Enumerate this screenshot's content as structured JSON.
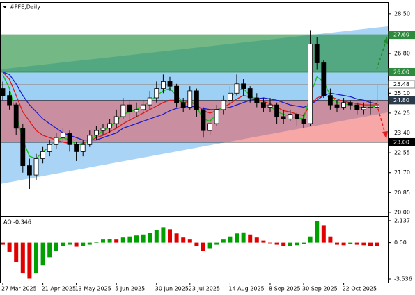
{
  "chart_data": [
    {
      "type": "candlestick",
      "title": "#PFE,Daily",
      "categories": [
        "27 Mar 2025",
        null,
        null,
        null,
        null,
        null,
        "21 Apr 2025",
        null,
        null,
        null,
        null,
        "13 May 2025",
        null,
        null,
        null,
        null,
        null,
        "5 Jun 2025",
        null,
        null,
        null,
        null,
        null,
        "30 Jun 2025",
        null,
        null,
        null,
        null,
        "23 Jul 2025",
        null,
        null,
        null,
        null,
        null,
        "14 Aug 2025",
        null,
        null,
        null,
        null,
        null,
        "8 Sep 2025",
        null,
        null,
        null,
        null,
        "30 Sep 2025",
        null,
        null,
        null,
        null,
        null,
        "22 Oct 2025",
        null,
        null,
        null,
        null,
        null
      ],
      "open": [
        25.3,
        25.0,
        24.6,
        23.6,
        22.0,
        21.6,
        22.3,
        22.6,
        22.9,
        23.2,
        23.4,
        22.9,
        22.6,
        22.9,
        23.3,
        23.5,
        23.6,
        23.8,
        24.1,
        24.6,
        24.3,
        24.4,
        24.6,
        24.9,
        25.3,
        25.6,
        25.4,
        24.7,
        24.5,
        25.2,
        24.4,
        23.5,
        23.8,
        24.4,
        24.8,
        25.1,
        25.5,
        25.3,
        24.9,
        24.7,
        24.5,
        24.6,
        24.1,
        24.0,
        24.2,
        24.0,
        23.8,
        27.2,
        26.4,
        25.0,
        24.6,
        24.5,
        24.7,
        24.6,
        24.4,
        24.5,
        24.5
      ],
      "high": [
        25.6,
        25.2,
        24.7,
        23.8,
        22.3,
        22.5,
        22.8,
        23.1,
        23.4,
        23.6,
        23.5,
        23.0,
        23.1,
        23.5,
        23.7,
        23.8,
        24.0,
        24.4,
        24.9,
        24.8,
        24.7,
        24.8,
        25.2,
        25.6,
        25.9,
        25.8,
        25.5,
        24.9,
        25.4,
        25.3,
        24.5,
        24.0,
        24.6,
        25.0,
        25.4,
        25.9,
        25.7,
        25.4,
        25.1,
        24.9,
        24.9,
        24.7,
        24.4,
        24.4,
        24.3,
        24.2,
        27.8,
        27.5,
        26.5,
        25.3,
        24.8,
        24.9,
        24.8,
        24.7,
        24.7,
        24.8,
        25.45
      ],
      "low": [
        24.8,
        24.4,
        23.3,
        21.7,
        21.0,
        21.4,
        22.1,
        22.4,
        22.7,
        23.0,
        22.6,
        22.2,
        22.4,
        22.8,
        23.1,
        23.3,
        23.4,
        23.6,
        24.0,
        24.0,
        24.1,
        24.2,
        24.4,
        24.7,
        25.1,
        25.2,
        24.5,
        24.3,
        24.4,
        24.1,
        23.2,
        23.3,
        23.7,
        24.2,
        24.6,
        25.0,
        25.0,
        24.7,
        24.5,
        24.3,
        24.3,
        23.8,
        23.8,
        23.9,
        23.7,
        23.6,
        23.7,
        26.1,
        24.9,
        24.4,
        24.3,
        24.4,
        24.4,
        24.2,
        24.2,
        24.2,
        24.4
      ],
      "close": [
        25.0,
        24.6,
        23.6,
        22.0,
        21.6,
        22.3,
        22.6,
        22.9,
        23.2,
        23.4,
        22.9,
        22.6,
        22.9,
        23.3,
        23.5,
        23.6,
        23.8,
        24.1,
        24.6,
        24.3,
        24.4,
        24.6,
        24.9,
        25.3,
        25.6,
        25.4,
        24.7,
        24.5,
        25.2,
        24.4,
        23.5,
        23.8,
        24.4,
        24.8,
        25.1,
        25.5,
        25.3,
        24.9,
        24.7,
        24.5,
        24.6,
        24.1,
        24.0,
        24.2,
        24.0,
        23.8,
        27.2,
        26.4,
        25.0,
        24.6,
        24.5,
        24.7,
        24.6,
        24.4,
        24.5,
        24.5,
        24.6
      ],
      "up_color": "#ffffff",
      "down_color": "#000000",
      "outline_color": "#000000",
      "ma_lines": [
        {
          "color": "#1c1ccc",
          "values": [
            26.0,
            25.9,
            25.5,
            25.0,
            24.6,
            24.3,
            24.0,
            23.8,
            23.6,
            23.4,
            23.3,
            23.2,
            23.1,
            23.1,
            23.1,
            23.2,
            23.3,
            23.4,
            23.6,
            23.7,
            23.8,
            23.9,
            24.0,
            24.1,
            24.2,
            24.35,
            24.45,
            24.5,
            24.55,
            24.5,
            24.45,
            24.4,
            24.4,
            24.45,
            24.5,
            24.6,
            24.7,
            24.8,
            24.85,
            24.9,
            24.85,
            24.8,
            24.7,
            24.6,
            24.55,
            24.5,
            24.6,
            24.8,
            25.0,
            25.1,
            25.05,
            25.0,
            24.95,
            24.85,
            24.8,
            24.7,
            24.65
          ]
        },
        {
          "color": "#dd1a1a",
          "values": [
            26.0,
            25.7,
            25.0,
            24.3,
            23.9,
            23.5,
            23.3,
            23.2,
            23.1,
            23.0,
            22.95,
            22.9,
            22.95,
            23.05,
            23.2,
            23.3,
            23.45,
            23.6,
            23.8,
            23.95,
            24.1,
            24.25,
            24.4,
            24.55,
            24.7,
            24.8,
            24.8,
            24.7,
            24.75,
            24.6,
            24.35,
            24.25,
            24.35,
            24.5,
            24.65,
            24.85,
            25.0,
            24.95,
            24.85,
            24.75,
            24.65,
            24.5,
            24.35,
            24.3,
            24.2,
            24.15,
            24.6,
            24.9,
            25.0,
            24.95,
            24.85,
            24.75,
            24.7,
            24.65,
            24.6,
            24.6,
            24.6
          ]
        },
        {
          "color": "#10c010",
          "values": [
            25.9,
            25.3,
            24.2,
            23.1,
            22.4,
            22.3,
            22.6,
            22.8,
            23.1,
            23.2,
            23.1,
            22.9,
            22.9,
            23.1,
            23.3,
            23.5,
            23.65,
            23.9,
            24.2,
            24.3,
            24.4,
            24.55,
            24.75,
            25.0,
            25.2,
            25.3,
            25.0,
            24.7,
            24.8,
            24.5,
            24.0,
            23.9,
            24.2,
            24.6,
            24.9,
            25.2,
            25.3,
            25.0,
            24.8,
            24.6,
            24.55,
            24.3,
            24.2,
            24.1,
            24.05,
            24.0,
            25.0,
            25.8,
            25.6,
            25.0,
            24.7,
            24.65,
            24.6,
            24.5,
            24.5,
            24.5,
            24.55
          ]
        }
      ],
      "ylim": [
        19.85,
        29.0
      ],
      "yticks": [
        {
          "value": 28.5,
          "label": "28.50"
        },
        {
          "value": 26.8,
          "label": "26.80"
        },
        {
          "value": 25.1,
          "label": "25.10"
        },
        {
          "value": 24.25,
          "label": "24.25"
        },
        {
          "value": 23.4,
          "label": "23.40"
        },
        {
          "value": 22.55,
          "label": "22.55"
        },
        {
          "value": 21.7,
          "label": "21.70"
        },
        {
          "value": 20.85,
          "label": "20.85"
        },
        {
          "value": 20.0,
          "label": "20.00"
        }
      ],
      "zones": [
        {
          "from": 26.0,
          "to": 27.6,
          "color": "rgba(30,140,60,0.62)"
        },
        {
          "from": 24.8,
          "to": 26.0,
          "color": "rgba(150,205,245,0.6)"
        },
        {
          "from": 23.0,
          "to": 24.8,
          "color": "rgba(240,60,60,0.45)"
        }
      ],
      "levels": [
        {
          "value": 27.6,
          "label": "27.60",
          "color": "#2e8b3e",
          "text_color": "#ffffff"
        },
        {
          "value": 26.0,
          "label": "26.00",
          "color": "#2e8b3e",
          "text_color": "#ffffff"
        },
        {
          "value": 25.48,
          "label": "25.48",
          "color": "#ffffff",
          "text_color": "#000000"
        },
        {
          "value": 24.8,
          "label": "24.80",
          "color": "#2b3a4a",
          "text_color": "#ffffff"
        },
        {
          "value": 23.0,
          "label": "23.00",
          "color": "#000000",
          "text_color": "#ffffff"
        }
      ]
    },
    {
      "type": "bar",
      "title": "AO -0.346",
      "values": [
        -0.2,
        -0.9,
        -1.9,
        -3.0,
        -3.5,
        -3.0,
        -2.2,
        -1.4,
        -0.8,
        -0.3,
        -0.2,
        -0.4,
        -0.35,
        -0.2,
        0.1,
        0.3,
        0.35,
        0.3,
        0.5,
        0.6,
        0.7,
        0.8,
        0.95,
        1.2,
        1.5,
        1.3,
        0.9,
        0.5,
        0.3,
        -0.3,
        -0.8,
        -0.6,
        -0.2,
        0.3,
        0.6,
        0.9,
        1.0,
        0.8,
        0.5,
        0.2,
        0.0,
        -0.2,
        -0.35,
        -0.3,
        -0.25,
        -0.1,
        0.6,
        2.1,
        1.7,
        0.6,
        -0.2,
        -0.25,
        -0.15,
        -0.2,
        -0.25,
        -0.3,
        -0.346
      ],
      "up_color": "#00a000",
      "down_color": "#e00000",
      "ylim": [
        -3.94,
        2.47
      ],
      "yticks": [
        {
          "value": 2.137,
          "label": "2.137"
        },
        {
          "value": 0,
          "label": "0.00"
        },
        {
          "value": -3.536,
          "label": "-3.536"
        }
      ]
    }
  ]
}
